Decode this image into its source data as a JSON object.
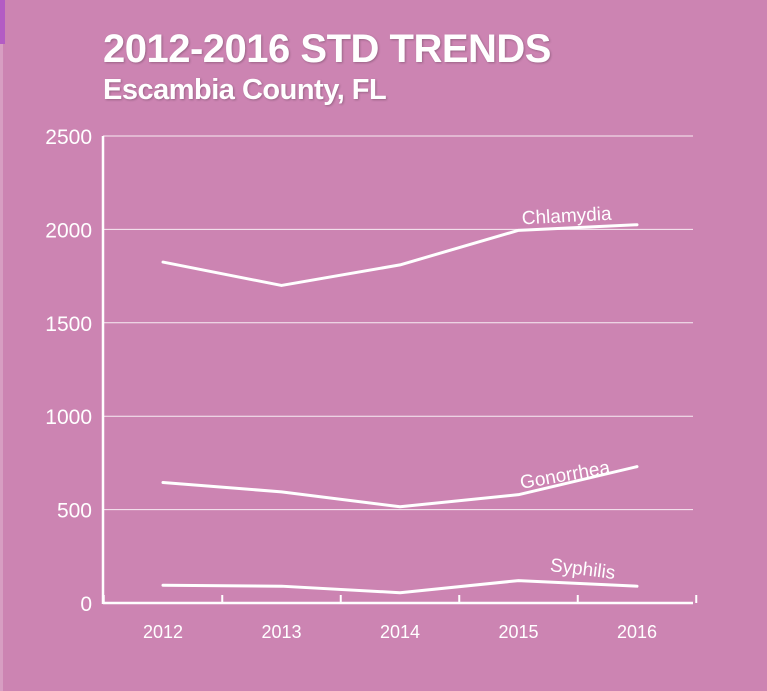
{
  "header": {
    "title": "2012-2016 STD TRENDS",
    "subtitle": "Escambia County, FL"
  },
  "colors": {
    "background": "#cc84b2",
    "line": "#ffffff",
    "grid": "#ffffff"
  },
  "chart_data": {
    "type": "line",
    "title": "2012-2016 STD TRENDS",
    "subtitle": "Escambia County, FL",
    "xlabel": "",
    "ylabel": "",
    "categories": [
      "2012",
      "2013",
      "2014",
      "2015",
      "2016"
    ],
    "ylim": [
      0,
      2500
    ],
    "yticks": [
      0,
      500,
      1000,
      1500,
      2000,
      2500
    ],
    "grid": true,
    "legend": "inline labels near line ends",
    "series": [
      {
        "name": "Chlamydia",
        "values": [
          1825,
          1700,
          1810,
          1995,
          2025
        ]
      },
      {
        "name": "Gonorrhea",
        "values": [
          645,
          595,
          515,
          580,
          730
        ]
      },
      {
        "name": "Syphilis",
        "values": [
          95,
          90,
          55,
          120,
          90
        ]
      }
    ]
  }
}
